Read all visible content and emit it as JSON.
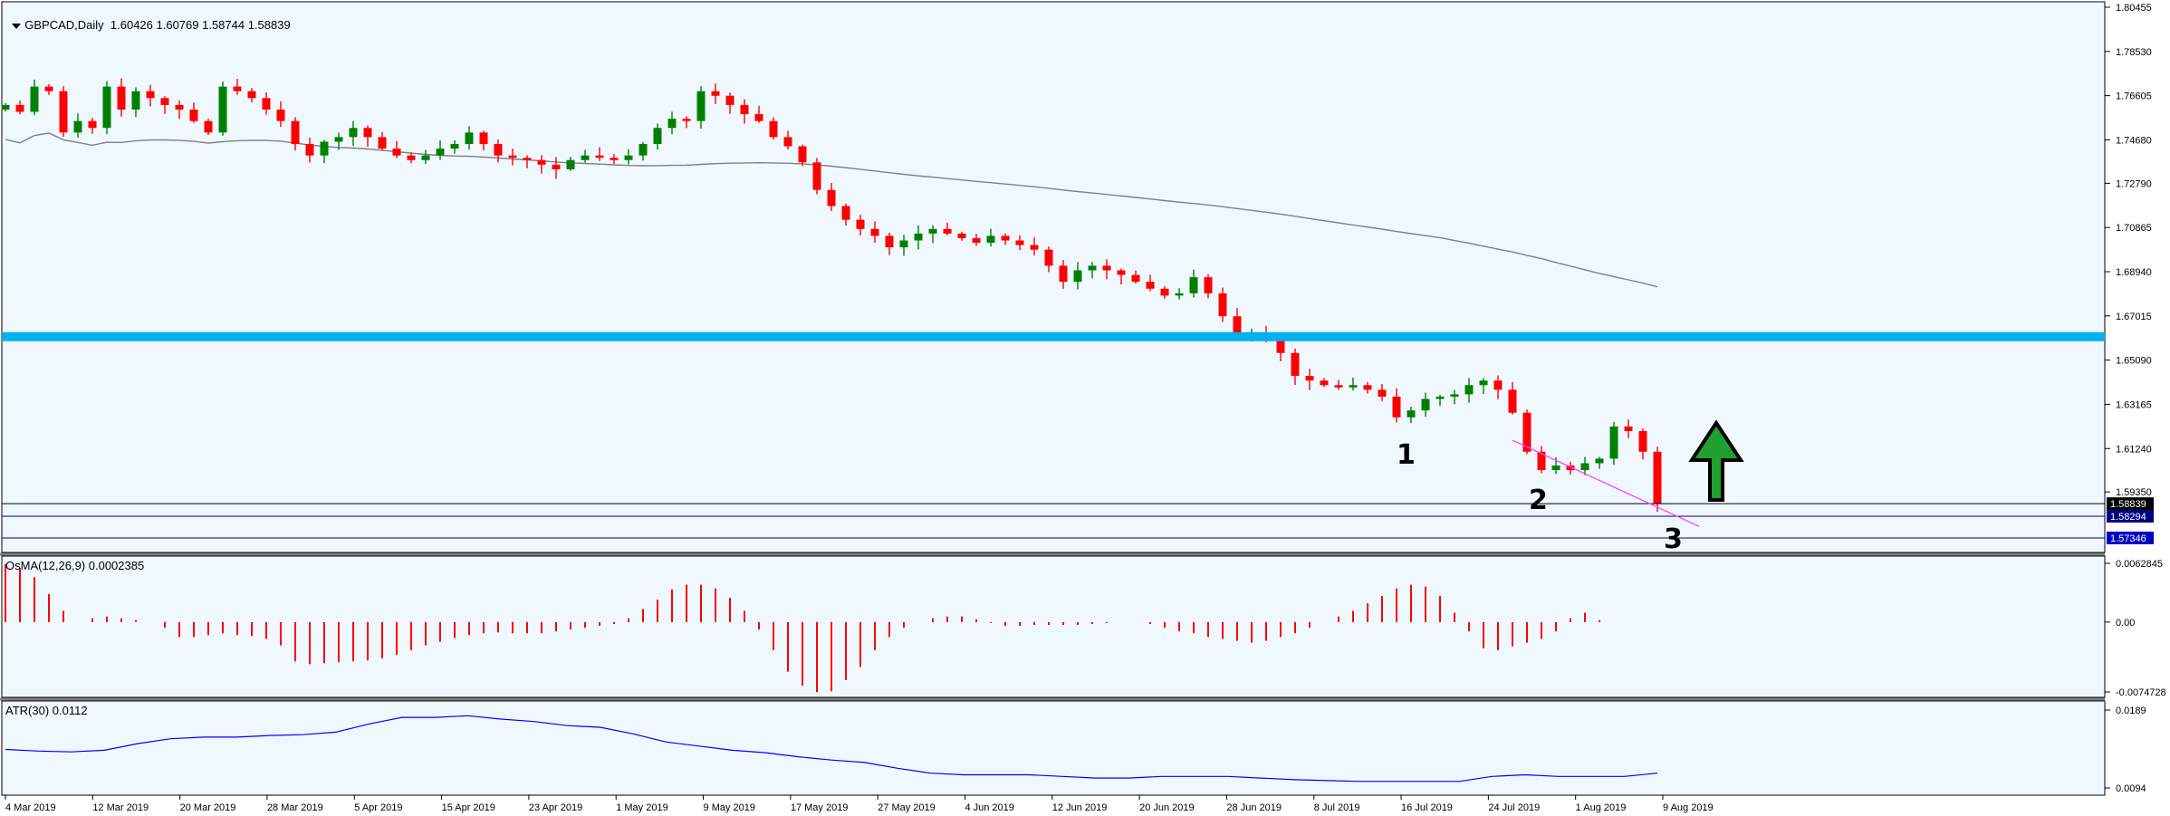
{
  "header": {
    "menu_icon": "triangle-down-icon",
    "symbol": "GBPCAD,Daily",
    "ohlc": "1.60426 1.60769 1.58744 1.58839"
  },
  "colors": {
    "background": "#f0f8ff",
    "bull": "#008000",
    "bear": "#ff0000",
    "ma": "#808080",
    "support_line": "#00b0f0",
    "trendline": "#ff40ff",
    "level_line": "#000080",
    "atr": "#0000ff",
    "arrow": "#20a030"
  },
  "chart_data": [
    {
      "type": "candlestick",
      "panel": "main",
      "title": "GBPCAD,Daily",
      "ylim": [
        1.57346,
        1.80455
      ],
      "y_ticks": [
        "1.80455",
        "1.78530",
        "1.76605",
        "1.74680",
        "1.72790",
        "1.70865",
        "1.68940",
        "1.67015",
        "1.65090",
        "1.63165",
        "1.61240",
        "1.59350"
      ],
      "x_ticks": [
        "4 Mar 2019",
        "12 Mar 2019",
        "20 Mar 2019",
        "28 Mar 2019",
        "5 Apr 2019",
        "15 Apr 2019",
        "23 Apr 2019",
        "1 May 2019",
        "9 May 2019",
        "17 May 2019",
        "27 May 2019",
        "4 Jun 2019",
        "12 Jun 2019",
        "20 Jun 2019",
        "28 Jun 2019",
        "8 Jul 2019",
        "16 Jul 2019",
        "24 Jul 2019",
        "1 Aug 2019",
        "9 Aug 2019"
      ],
      "closes": [
        1.762,
        1.759,
        1.77,
        1.768,
        1.75,
        1.755,
        1.752,
        1.77,
        1.76,
        1.768,
        1.765,
        1.762,
        1.76,
        1.755,
        1.75,
        1.77,
        1.768,
        1.765,
        1.76,
        1.755,
        1.745,
        1.74,
        1.746,
        1.748,
        1.752,
        1.748,
        1.743,
        1.74,
        1.738,
        1.74,
        1.743,
        1.745,
        1.75,
        1.745,
        1.74,
        1.739,
        1.738,
        1.736,
        1.734,
        1.738,
        1.74,
        1.739,
        1.738,
        1.74,
        1.745,
        1.752,
        1.756,
        1.755,
        1.768,
        1.766,
        1.762,
        1.758,
        1.755,
        1.748,
        1.744,
        1.737,
        1.725,
        1.718,
        1.712,
        1.708,
        1.705,
        1.7,
        1.703,
        1.706,
        1.708,
        1.706,
        1.704,
        1.702,
        1.705,
        1.703,
        1.701,
        1.699,
        1.692,
        1.685,
        1.69,
        1.692,
        1.69,
        1.688,
        1.685,
        1.682,
        1.679,
        1.68,
        1.687,
        1.68,
        1.67,
        1.662,
        1.663,
        1.662,
        1.654,
        1.644,
        1.642,
        1.64,
        1.639,
        1.64,
        1.638,
        1.635,
        1.626,
        1.629,
        1.634,
        1.635,
        1.636,
        1.64,
        1.642,
        1.638,
        1.628,
        1.611,
        1.603,
        1.605,
        1.603,
        1.606,
        1.608,
        1.622,
        1.62,
        1.611,
        1.5884
      ],
      "series": [
        {
          "name": "200-period moving average"
        },
        {
          "name": "Support zone",
          "value": 1.6611
        },
        {
          "name": "Current price",
          "value": 1.58839
        },
        {
          "name": "Level",
          "value": 1.58294
        },
        {
          "name": "Level",
          "value": 1.57346
        }
      ],
      "price_labels": [
        "1.58839",
        "1.58294",
        "1.57346"
      ],
      "annotations": [
        "1",
        "2",
        "3"
      ],
      "arrow_direction": "up"
    },
    {
      "type": "bar",
      "panel": "osma",
      "title": "OsMA(12,26,9) 0.0002385",
      "ylim": [
        -0.007472,
        0.006284
      ],
      "y_ticks": [
        "0.0062845",
        "0.00",
        "-0.0074728"
      ],
      "values": [
        0.0062,
        0.0058,
        0.0048,
        0.003,
        0.0012,
        0.0,
        0.0004,
        0.0006,
        0.0004,
        0.0002,
        0.0,
        -0.0006,
        -0.0016,
        -0.0016,
        -0.0014,
        -0.0012,
        -0.0014,
        -0.0015,
        -0.0018,
        -0.0025,
        -0.0042,
        -0.0045,
        -0.0044,
        -0.0043,
        -0.0042,
        -0.0041,
        -0.0039,
        -0.0035,
        -0.003,
        -0.0025,
        -0.0021,
        -0.0017,
        -0.0014,
        -0.0012,
        -0.0011,
        -0.0012,
        -0.0012,
        -0.0012,
        -0.001,
        -0.0008,
        -0.0006,
        -0.0004,
        -0.0002,
        0.0004,
        0.0014,
        0.0024,
        0.0035,
        0.004,
        0.004,
        0.0036,
        0.0026,
        0.0012,
        -0.0008,
        -0.003,
        -0.0053,
        -0.0068,
        -0.0075,
        -0.0074,
        -0.0062,
        -0.0048,
        -0.003,
        -0.0016,
        -0.0006,
        0.0,
        0.0004,
        0.0006,
        0.0006,
        0.0003,
        -0.0001,
        -0.0004,
        -0.0004,
        -0.0003,
        -0.0003,
        -0.0003,
        -0.0003,
        -0.0002,
        -0.0001,
        0.0,
        0.0,
        -0.0002,
        -0.0006,
        -0.001,
        -0.0012,
        -0.0016,
        -0.0018,
        -0.002,
        -0.0022,
        -0.002,
        -0.0016,
        -0.0012,
        -0.0006,
        0.0,
        0.0006,
        0.0012,
        0.002,
        0.0028,
        0.0036,
        0.004,
        0.0038,
        0.0028,
        0.001,
        -0.001,
        -0.0028,
        -0.003,
        -0.0026,
        -0.0022,
        -0.0018,
        -0.001,
        0.0004,
        0.001,
        0.0002
      ],
      "bar_color": "#ff0000"
    },
    {
      "type": "line",
      "panel": "atr",
      "title": "ATR(30) 0.0112",
      "ylim": [
        0.0094,
        0.0189
      ],
      "y_ticks": [
        "0.0189",
        "0.0094"
      ],
      "values": [
        0.0141,
        0.0139,
        0.0138,
        0.014,
        0.0148,
        0.0154,
        0.0156,
        0.0156,
        0.0158,
        0.0159,
        0.0162,
        0.0172,
        0.018,
        0.018,
        0.0182,
        0.0178,
        0.0175,
        0.017,
        0.0168,
        0.016,
        0.015,
        0.0145,
        0.014,
        0.0137,
        0.0132,
        0.0128,
        0.0125,
        0.0118,
        0.0112,
        0.011,
        0.011,
        0.011,
        0.0108,
        0.0106,
        0.0106,
        0.0108,
        0.0108,
        0.0108,
        0.0106,
        0.0104,
        0.0103,
        0.0102,
        0.0102,
        0.0102,
        0.0102,
        0.0108,
        0.011,
        0.0108,
        0.0108,
        0.0108,
        0.0112
      ],
      "line_color": "#0000ff"
    }
  ]
}
